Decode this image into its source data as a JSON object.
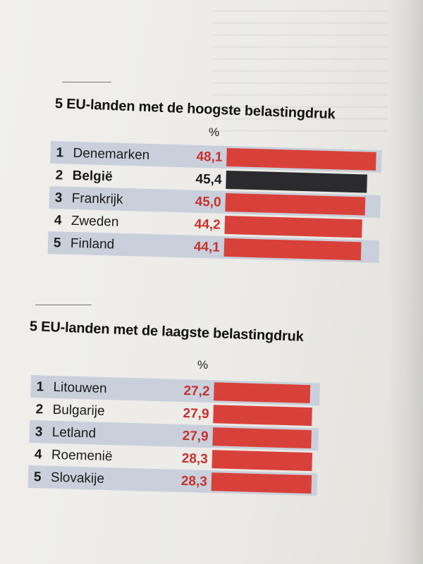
{
  "colors": {
    "bar_red": "#d8413a",
    "bar_black": "#2b2b2d",
    "value_red": "#c9302c",
    "value_black": "#1a1a1a",
    "stripe": "#c9d0dc",
    "text": "#1a1a1a"
  },
  "chart_data": [
    {
      "type": "bar",
      "title": "5 EU-landen met de hoogste belastingdruk",
      "unit": "%",
      "categories": [
        "Denemarken",
        "België",
        "Frankrijk",
        "Zweden",
        "Finland"
      ],
      "ranks": [
        "1",
        "2",
        "3",
        "4",
        "5"
      ],
      "values": [
        48.1,
        45.4,
        45.0,
        44.2,
        44.1
      ],
      "value_labels": [
        "48,1",
        "45,4",
        "45,0",
        "44,2",
        "44,1"
      ],
      "highlight_index": 1
    },
    {
      "type": "bar",
      "title": "5 EU-landen met de laagste belastingdruk",
      "unit": "%",
      "categories": [
        "Litouwen",
        "Bulgarije",
        "Letland",
        "Roemenië",
        "Slovakije"
      ],
      "ranks": [
        "1",
        "2",
        "3",
        "4",
        "5"
      ],
      "values": [
        27.2,
        27.9,
        27.9,
        28.3,
        28.3
      ],
      "value_labels": [
        "27,2",
        "27,9",
        "27,9",
        "28,3",
        "28,3"
      ]
    }
  ]
}
